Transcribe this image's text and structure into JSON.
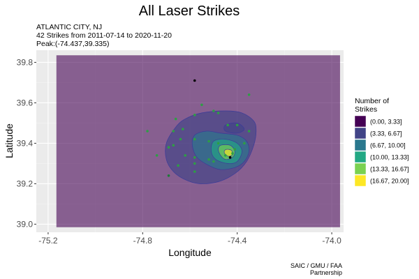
{
  "chart_data": {
    "type": "scatter",
    "title": "All Laser Strikes",
    "subtitle_lines": [
      "ATLANTIC CITY, NJ",
      "42 Strikes from 2011-07-14 to 2020-11-20",
      "Peak:(-74.437,39.335)"
    ],
    "xlabel": "Longitude",
    "ylabel": "Latitude",
    "xlim": [
      -75.25,
      -73.95
    ],
    "ylim": [
      38.96,
      39.86
    ],
    "xticks": [
      {
        "value": -75.2,
        "label": "-75.2"
      },
      {
        "value": -74.8,
        "label": "-74.8"
      },
      {
        "value": -74.4,
        "label": "-74.4"
      },
      {
        "value": -74.0,
        "label": "-74.0"
      }
    ],
    "yticks": [
      {
        "value": 39.0,
        "label": "39.0"
      },
      {
        "value": 39.2,
        "label": "39.2"
      },
      {
        "value": 39.4,
        "label": "39.4"
      },
      {
        "value": 39.6,
        "label": "39.6"
      },
      {
        "value": 39.8,
        "label": "39.8"
      }
    ],
    "grid": true,
    "background_rect": {
      "x": [
        -75.165,
        -73.965
      ],
      "y": [
        38.985,
        39.835
      ]
    },
    "legend": {
      "title_lines": [
        "Number of",
        "Strikes"
      ],
      "placement": "right",
      "entries": [
        {
          "label": "(0.00, 3.33]",
          "color": "#440154"
        },
        {
          "label": "(3.33, 6.67]",
          "color": "#414487"
        },
        {
          "label": "(6.67, 10.00]",
          "color": "#2A788E"
        },
        {
          "label": "(10.00, 13.33]",
          "color": "#22A884"
        },
        {
          "label": "(13.33, 16.67]",
          "color": "#7AD151"
        },
        {
          "label": "(16.67, 20.00]",
          "color": "#FDE725"
        }
      ]
    },
    "contours": [
      {
        "level": 1,
        "color": "#414487",
        "points": [
          [
            -74.66,
            39.48
          ],
          [
            -74.62,
            39.52
          ],
          [
            -74.55,
            39.55
          ],
          [
            -74.45,
            39.56
          ],
          [
            -74.38,
            39.55
          ],
          [
            -74.33,
            39.51
          ],
          [
            -74.32,
            39.46
          ],
          [
            -74.33,
            39.39
          ],
          [
            -74.36,
            39.31
          ],
          [
            -74.41,
            39.25
          ],
          [
            -74.48,
            39.21
          ],
          [
            -74.56,
            39.2
          ],
          [
            -74.62,
            39.22
          ],
          [
            -74.67,
            39.26
          ],
          [
            -74.7,
            39.32
          ],
          [
            -74.7,
            39.4
          ]
        ]
      },
      {
        "level": 2,
        "color": "#2A788E",
        "points": [
          [
            -74.58,
            39.44
          ],
          [
            -74.53,
            39.46
          ],
          [
            -74.47,
            39.45
          ],
          [
            -74.4,
            39.44
          ],
          [
            -74.36,
            39.41
          ],
          [
            -74.35,
            39.36
          ],
          [
            -74.37,
            39.31
          ],
          [
            -74.41,
            39.28
          ],
          [
            -74.47,
            39.27
          ],
          [
            -74.52,
            39.29
          ],
          [
            -74.57,
            39.33
          ],
          [
            -74.59,
            39.39
          ]
        ]
      },
      {
        "level": 3,
        "color": "#22A884",
        "points": [
          [
            -74.5,
            39.41
          ],
          [
            -74.45,
            39.42
          ],
          [
            -74.4,
            39.4
          ],
          [
            -74.38,
            39.36
          ],
          [
            -74.4,
            39.31
          ],
          [
            -74.44,
            39.3
          ],
          [
            -74.49,
            39.32
          ],
          [
            -74.51,
            39.36
          ]
        ]
      },
      {
        "level": 4,
        "color": "#7AD151",
        "points": [
          [
            -74.47,
            39.39
          ],
          [
            -74.43,
            39.39
          ],
          [
            -74.41,
            39.36
          ],
          [
            -74.42,
            39.33
          ],
          [
            -74.45,
            39.32
          ],
          [
            -74.47,
            39.34
          ],
          [
            -74.48,
            39.37
          ]
        ]
      },
      {
        "level": 5,
        "color": "#FDE725",
        "points": [
          [
            -74.445,
            39.37
          ],
          [
            -74.425,
            39.365
          ],
          [
            -74.42,
            39.345
          ],
          [
            -74.435,
            39.335
          ],
          [
            -74.45,
            39.345
          ],
          [
            -74.455,
            39.36
          ]
        ]
      },
      {
        "level": 1,
        "color": "#414487",
        "points": [
          [
            -74.45,
            39.49
          ],
          [
            -74.4,
            39.5
          ],
          [
            -74.37,
            39.47
          ],
          [
            -74.4,
            39.45
          ],
          [
            -74.45,
            39.46
          ]
        ]
      }
    ],
    "points": [
      {
        "x": -74.58,
        "y": 39.71,
        "color": "#000000"
      },
      {
        "x": -74.43,
        "y": 39.33,
        "color": "#000000"
      },
      {
        "x": -74.69,
        "y": 39.24,
        "color": "#1f7a3a"
      },
      {
        "x": -74.35,
        "y": 39.64,
        "color": "#2e9e45"
      },
      {
        "x": -74.78,
        "y": 39.46,
        "color": "#2e9e45"
      },
      {
        "x": -74.55,
        "y": 39.59,
        "color": "#2e9e45"
      },
      {
        "x": -74.5,
        "y": 39.56,
        "color": "#2e9e45"
      },
      {
        "x": -74.48,
        "y": 39.55,
        "color": "#2e9e45"
      },
      {
        "x": -74.58,
        "y": 39.54,
        "color": "#2e9e45"
      },
      {
        "x": -74.66,
        "y": 39.52,
        "color": "#2e9e45"
      },
      {
        "x": -74.44,
        "y": 39.49,
        "color": "#2e9e45"
      },
      {
        "x": -74.4,
        "y": 39.49,
        "color": "#2e9e45"
      },
      {
        "x": -74.63,
        "y": 39.47,
        "color": "#2e9e45"
      },
      {
        "x": -74.67,
        "y": 39.46,
        "color": "#2e9e45"
      },
      {
        "x": -74.35,
        "y": 39.46,
        "color": "#2e9e45"
      },
      {
        "x": -74.64,
        "y": 39.42,
        "color": "#2e9e45"
      },
      {
        "x": -74.58,
        "y": 39.42,
        "color": "#2e9e45"
      },
      {
        "x": -74.67,
        "y": 39.39,
        "color": "#2e9e45"
      },
      {
        "x": -74.69,
        "y": 39.38,
        "color": "#2e9e45"
      },
      {
        "x": -74.52,
        "y": 39.41,
        "color": "#2e9e45"
      },
      {
        "x": -74.48,
        "y": 39.4,
        "color": "#2e9e45"
      },
      {
        "x": -74.37,
        "y": 39.4,
        "color": "#2e9e45"
      },
      {
        "x": -74.74,
        "y": 39.34,
        "color": "#2e9e45"
      },
      {
        "x": -74.62,
        "y": 39.34,
        "color": "#2e9e45"
      },
      {
        "x": -74.58,
        "y": 39.33,
        "color": "#2e9e45"
      },
      {
        "x": -74.52,
        "y": 39.32,
        "color": "#2e9e45"
      },
      {
        "x": -74.5,
        "y": 39.31,
        "color": "#2e9e45"
      },
      {
        "x": -74.58,
        "y": 39.3,
        "color": "#2e9e45"
      },
      {
        "x": -74.65,
        "y": 39.29,
        "color": "#2e9e45"
      },
      {
        "x": -74.58,
        "y": 39.26,
        "color": "#2e9e45"
      },
      {
        "x": -74.45,
        "y": 39.34,
        "color": "#2e9e45"
      },
      {
        "x": -74.42,
        "y": 39.35,
        "color": "#2e9e45"
      },
      {
        "x": -74.41,
        "y": 39.37,
        "color": "#2e9e45"
      }
    ],
    "caption_lines": [
      "SAIC / GMU / FAA",
      "Partnership"
    ]
  }
}
